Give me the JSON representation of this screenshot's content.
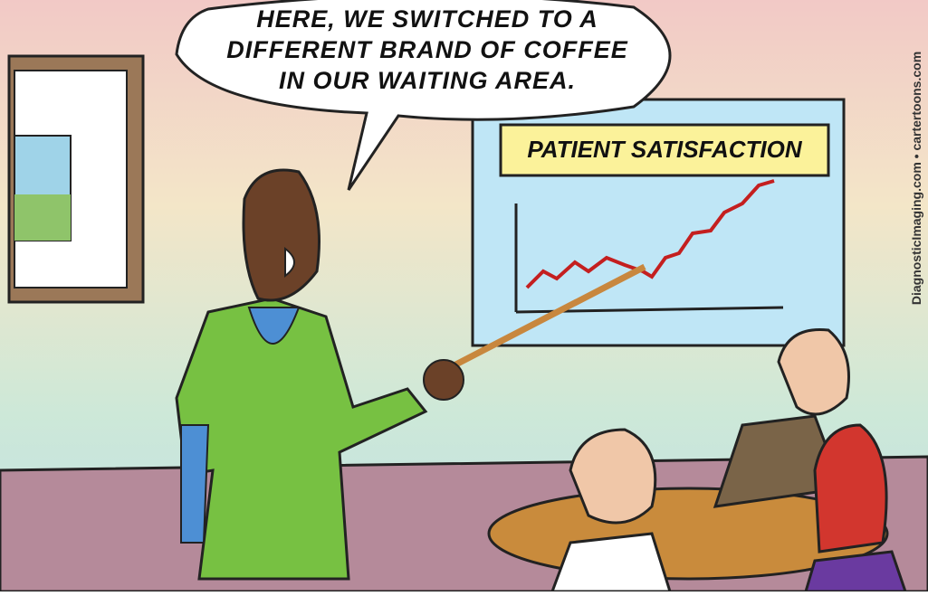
{
  "speech_bubble": {
    "lines": [
      "HERE, WE SWITCHED TO A",
      "DIFFERENT BRAND OF COFFEE",
      "IN OUR WAITING AREA."
    ]
  },
  "screen": {
    "title": "PATIENT SATISFACTION"
  },
  "credit": "DiagnosticImaging.com • cartertoons.com"
}
